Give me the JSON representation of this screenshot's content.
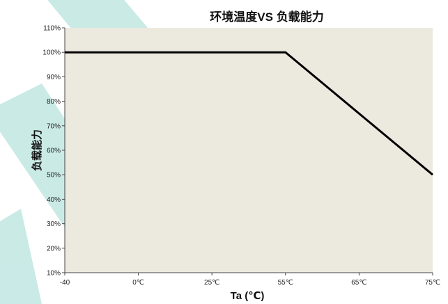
{
  "chart_data": {
    "type": "line",
    "title": "环境温度VS 负载能力",
    "xlabel": "Ta (℃)",
    "ylabel": "负载能力",
    "x_tick_labels": [
      "-40",
      "0℃",
      "25℃",
      "55℃",
      "65℃",
      "75℃"
    ],
    "y_tick_labels": [
      "10%",
      "20%",
      "30%",
      "40%",
      "50%",
      "60%",
      "70%",
      "80%",
      "90%",
      "100%",
      "110%"
    ],
    "ylim": [
      10,
      110
    ],
    "grid": false,
    "legend": "none",
    "series": [
      {
        "points": [
          {
            "x": "-40",
            "y": 100
          },
          {
            "x": "55℃",
            "y": 100
          },
          {
            "x": "75℃",
            "y": 50
          }
        ],
        "color": "#000000"
      }
    ],
    "plot_background": "#ece9df",
    "watermark_color": "#a8ddd8"
  }
}
